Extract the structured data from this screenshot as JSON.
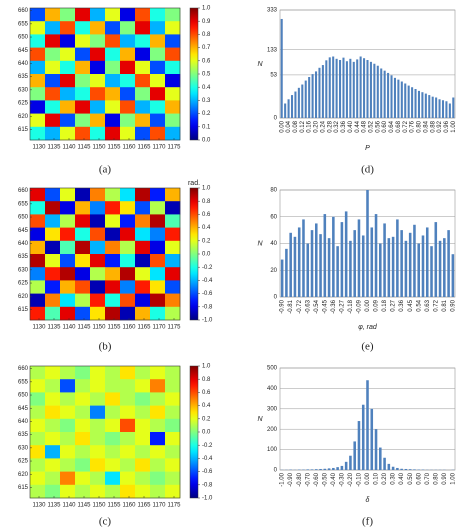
{
  "chart_data": [
    {
      "type": "heatmap",
      "caption": "(a)",
      "colormap": "jet",
      "xlim": [
        1127,
        1177
      ],
      "ylim": [
        611,
        661
      ],
      "xticks": [
        1130,
        1135,
        1140,
        1145,
        1150,
        1155,
        1160,
        1165,
        1170,
        1175
      ],
      "yticks": [
        615,
        620,
        625,
        630,
        635,
        640,
        645,
        650,
        655,
        660
      ],
      "colorbar": {
        "lim": [
          0,
          1
        ],
        "ticks": [
          {
            "value": 0,
            "label": "0.0"
          },
          0.1,
          0.2,
          0.3,
          0.4,
          0.5,
          0.6,
          0.7,
          0.8,
          0.9,
          {
            "value": 1,
            "label": "1.0"
          }
        ]
      },
      "values": [
        [
          0.2,
          0.7,
          0.5,
          0.9,
          0.3,
          0.6,
          0.1,
          0.8,
          0.4,
          0.5
        ],
        [
          0.6,
          0.3,
          0.8,
          0.4,
          0.7,
          0.2,
          0.5,
          0.9,
          0.3,
          0.6
        ],
        [
          0.4,
          0.9,
          0.1,
          0.6,
          0.5,
          0.8,
          0.3,
          0.4,
          0.7,
          0.2
        ],
        [
          0.8,
          0.5,
          0.6,
          0.2,
          0.9,
          0.4,
          0.7,
          0.1,
          0.5,
          0.8
        ],
        [
          0.3,
          0.6,
          0.4,
          0.7,
          0.1,
          0.5,
          0.9,
          0.6,
          0.2,
          0.4
        ],
        [
          0.7,
          0.2,
          0.9,
          0.5,
          0.6,
          0.3,
          0.4,
          0.8,
          0.6,
          0.1
        ],
        [
          0.5,
          0.8,
          0.3,
          0.4,
          0.8,
          0.7,
          0.2,
          0.5,
          0.9,
          0.6
        ],
        [
          0.1,
          0.4,
          0.7,
          0.9,
          0.3,
          0.6,
          0.8,
          0.3,
          0.4,
          0.7
        ],
        [
          0.6,
          0.9,
          0.2,
          0.5,
          0.7,
          0.1,
          0.5,
          0.7,
          0.2,
          0.5
        ],
        [
          0.4,
          0.3,
          0.6,
          0.8,
          0.4,
          0.9,
          0.6,
          0.2,
          0.8,
          0.3
        ]
      ]
    },
    {
      "type": "heatmap",
      "caption": "(b)",
      "colormap": "jet",
      "xlim": [
        1127,
        1177
      ],
      "ylim": [
        611,
        661
      ],
      "xticks": [
        1130,
        1135,
        1140,
        1145,
        1150,
        1155,
        1160,
        1165,
        1170,
        1175
      ],
      "yticks": [
        615,
        620,
        625,
        630,
        635,
        640,
        645,
        650,
        655,
        660
      ],
      "colorbar": {
        "lim": [
          -1,
          1
        ],
        "label": "rad.",
        "ticks": [
          {
            "value": -1,
            "label": "-1.0"
          },
          -0.8,
          -0.6,
          -0.4,
          -0.2,
          {
            "value": 0,
            "label": "0.0"
          },
          0.2,
          0.4,
          0.6,
          0.8,
          {
            "value": 1,
            "label": "1.0"
          }
        ]
      },
      "values": [
        [
          0.8,
          -0.6,
          0.2,
          -0.9,
          0.5,
          0.1,
          -0.3,
          0.9,
          -0.7,
          0.4
        ],
        [
          -0.2,
          0.9,
          -0.8,
          0.4,
          -0.5,
          0.7,
          0.3,
          -0.6,
          0.1,
          -0.9
        ],
        [
          0.6,
          -0.4,
          0.1,
          0.8,
          -0.9,
          0.2,
          -0.7,
          0.5,
          0.9,
          -0.1
        ],
        [
          -0.8,
          0.3,
          0.7,
          -0.2,
          0.6,
          -0.9,
          0.8,
          -0.3,
          -0.5,
          0.7
        ],
        [
          0.4,
          -0.9,
          -0.1,
          0.9,
          -0.4,
          0.5,
          0.1,
          0.8,
          -0.8,
          0.2
        ],
        [
          0.9,
          0.2,
          -0.6,
          0.3,
          0.8,
          -0.7,
          -0.2,
          -0.9,
          0.6,
          -0.4
        ],
        [
          -0.5,
          0.7,
          0.9,
          -0.8,
          0.1,
          0.4,
          0.9,
          0.2,
          -0.3,
          0.8
        ],
        [
          0.1,
          -0.7,
          0.4,
          0.6,
          -0.9,
          0.8,
          -0.5,
          0.7,
          0.3,
          -0.6
        ],
        [
          -0.9,
          0.5,
          -0.3,
          0.1,
          0.7,
          -0.2,
          0.6,
          -0.8,
          0.9,
          0.5
        ],
        [
          0.7,
          -0.1,
          0.8,
          -0.6,
          0.3,
          0.9,
          -0.9,
          0.4,
          -0.2,
          0.1
        ]
      ]
    },
    {
      "type": "heatmap",
      "caption": "(c)",
      "colormap": "jet",
      "xlim": [
        1127,
        1177
      ],
      "ylim": [
        611,
        661
      ],
      "xticks": [
        1130,
        1135,
        1140,
        1145,
        1150,
        1155,
        1160,
        1165,
        1170,
        1175
      ],
      "yticks": [
        615,
        620,
        625,
        630,
        635,
        640,
        645,
        650,
        655,
        660
      ],
      "colorbar": {
        "lim": [
          -1,
          1
        ],
        "ticks": [
          {
            "value": -1,
            "label": "-1.0"
          },
          -0.8,
          -0.6,
          -0.4,
          -0.2,
          {
            "value": 0,
            "label": "0.0"
          },
          0.2,
          0.4,
          0.6,
          0.8,
          {
            "value": 1,
            "label": "1.0"
          }
        ]
      },
      "values": [
        [
          0.1,
          0.2,
          0.1,
          0.0,
          0.2,
          0.1,
          0.3,
          0.1,
          0.2,
          0.1
        ],
        [
          0.2,
          0.1,
          -0.6,
          0.1,
          0.2,
          0.1,
          0.1,
          0.2,
          0.5,
          0.1
        ],
        [
          0.0,
          0.2,
          0.1,
          0.2,
          0.1,
          0.3,
          0.1,
          0.0,
          0.1,
          0.2
        ],
        [
          0.1,
          0.3,
          0.2,
          0.1,
          -0.5,
          0.1,
          0.2,
          0.1,
          0.3,
          0.1
        ],
        [
          0.2,
          0.1,
          0.0,
          0.2,
          0.1,
          0.2,
          0.6,
          0.2,
          0.1,
          0.0
        ],
        [
          0.1,
          0.2,
          0.1,
          0.3,
          0.1,
          0.0,
          0.1,
          0.2,
          -0.7,
          0.2
        ],
        [
          0.3,
          -0.4,
          0.2,
          0.1,
          0.2,
          0.1,
          0.2,
          0.1,
          0.2,
          0.1
        ],
        [
          0.1,
          0.2,
          0.1,
          0.0,
          0.3,
          0.2,
          0.1,
          0.3,
          0.1,
          0.2
        ],
        [
          0.2,
          0.1,
          0.5,
          0.2,
          0.1,
          -0.3,
          0.2,
          0.1,
          0.0,
          0.1
        ],
        [
          0.1,
          0.0,
          0.2,
          0.1,
          0.2,
          0.1,
          0.3,
          0.2,
          0.1,
          0.2
        ]
      ]
    },
    {
      "type": "bar",
      "caption": "(d)",
      "xlabel": "P",
      "ylabel": "N",
      "color": "#4f81bd",
      "grid": true,
      "yscale": "sqrt",
      "ylim": [
        0,
        333
      ],
      "yticks": [
        0,
        53,
        133,
        333
      ],
      "categories": [
        "0.00",
        null,
        "0.04",
        null,
        "0.08",
        null,
        "0.12",
        null,
        "0.16",
        null,
        "0.20",
        null,
        "0.24",
        null,
        "0.28",
        null,
        "0.32",
        null,
        "0.36",
        null,
        "0.40",
        null,
        "0.44",
        null,
        "0.48",
        null,
        "0.52",
        null,
        "0.56",
        null,
        "0.60",
        null,
        "0.64",
        null,
        "0.68",
        null,
        "0.72",
        null,
        "0.76",
        null,
        "0.80",
        null,
        "0.84",
        null,
        "0.88",
        null,
        "0.92",
        null,
        "0.96",
        null,
        "1.00"
      ],
      "values": [
        280,
        6,
        10,
        15,
        20,
        26,
        32,
        40,
        48,
        55,
        62,
        72,
        80,
        95,
        105,
        108,
        100,
        96,
        104,
        92,
        100,
        90,
        98,
        108,
        102,
        96,
        90,
        84,
        78,
        70,
        64,
        58,
        52,
        46,
        42,
        38,
        34,
        30,
        27,
        24,
        21,
        19,
        17,
        15,
        13,
        12,
        10,
        9,
        8,
        6,
        12
      ]
    },
    {
      "type": "bar",
      "caption": "(e)",
      "xlabel": "φ, rad",
      "ylabel": "N",
      "color": "#4f81bd",
      "grid": true,
      "ylim": [
        0,
        80
      ],
      "yticks": [
        0,
        20,
        40,
        60,
        80
      ],
      "categories": [
        "-0.90",
        null,
        "-0.81",
        null,
        "-0.72",
        null,
        "-0.63",
        null,
        "-0.54",
        null,
        "-0.45",
        null,
        "-0.36",
        null,
        "-0.27",
        null,
        "-0.18",
        null,
        "-0.09",
        null,
        "0.00",
        null,
        "0.09",
        null,
        "0.18",
        null,
        "0.27",
        null,
        "0.36",
        null,
        "0.45",
        null,
        "0.54",
        null,
        "0.63",
        null,
        "0.72",
        null,
        "0.81",
        null,
        "0.90"
      ],
      "values": [
        28,
        36,
        48,
        45,
        52,
        58,
        40,
        50,
        55,
        47,
        62,
        44,
        60,
        38,
        56,
        64,
        42,
        50,
        58,
        46,
        80,
        52,
        62,
        40,
        55,
        44,
        45,
        58,
        50,
        42,
        48,
        54,
        40,
        46,
        52,
        38,
        56,
        42,
        44,
        50,
        32
      ]
    },
    {
      "type": "bar",
      "caption": "(f)",
      "xlabel": "δ",
      "ylabel": "N",
      "color": "#4f81bd",
      "grid": true,
      "ylim": [
        0,
        500
      ],
      "yticks": [
        0,
        100,
        200,
        300,
        400,
        500
      ],
      "categories": [
        "-1.00",
        null,
        "-0.90",
        null,
        "-0.80",
        null,
        "-0.70",
        null,
        "-0.60",
        null,
        "-0.50",
        null,
        "-0.40",
        null,
        "-0.30",
        null,
        "-0.20",
        null,
        "-0.10",
        null,
        "0.00",
        null,
        "0.10",
        null,
        "0.20",
        null,
        "0.30",
        null,
        "0.40",
        null,
        "0.50",
        null,
        "0.60",
        null,
        "0.70",
        null,
        "0.80",
        null,
        "0.90",
        null,
        "1.00"
      ],
      "values": [
        1,
        1,
        2,
        1,
        2,
        2,
        3,
        3,
        4,
        5,
        6,
        8,
        10,
        14,
        20,
        40,
        70,
        140,
        240,
        320,
        440,
        300,
        200,
        110,
        60,
        30,
        16,
        10,
        6,
        5,
        4,
        3,
        2,
        2,
        1,
        1,
        1,
        1,
        1,
        0,
        1
      ]
    }
  ]
}
